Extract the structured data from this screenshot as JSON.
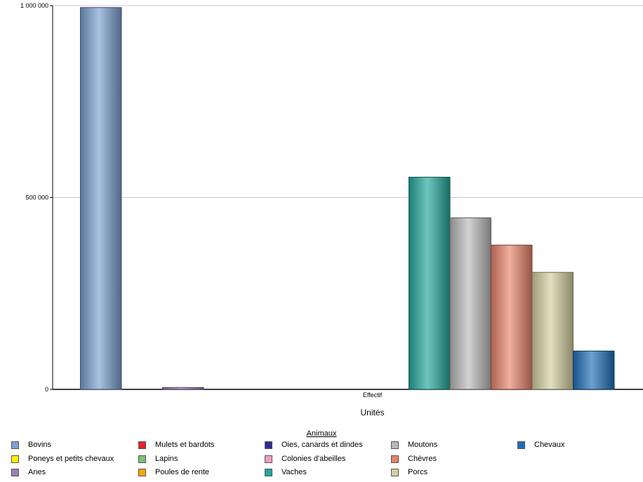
{
  "chart_data": {
    "type": "bar",
    "xlabel": "Unités",
    "categories": [
      "Effectif"
    ],
    "yticks": [
      "0",
      "500 000",
      "1 000 000"
    ],
    "ylim": [
      0,
      1000000
    ],
    "grid": true,
    "legend_title": "Animaux",
    "legend_placement": "bottom",
    "series": [
      {
        "name": "Bovins",
        "value": 995000,
        "color": "#7b9fd0"
      },
      {
        "name": "Poneys et petits chevaux",
        "value": 0,
        "color": "#ffee00"
      },
      {
        "name": "Anes",
        "value": 5000,
        "color": "#9b7fb8"
      },
      {
        "name": "Mulets et bardots",
        "value": 0,
        "color": "#e8202a"
      },
      {
        "name": "Lapins",
        "value": 0,
        "color": "#79c27a"
      },
      {
        "name": "Poules de rente",
        "value": 0,
        "color": "#f5a800"
      },
      {
        "name": "Oies, canards et dindes",
        "value": 0,
        "color": "#2b2f8f"
      },
      {
        "name": "Colonies d'abeilles",
        "value": 0,
        "color": "#f59cc8"
      },
      {
        "name": "Vaches",
        "value": 553000,
        "color": "#23a89c"
      },
      {
        "name": "Moutons",
        "value": 447000,
        "color": "#b9b9b9"
      },
      {
        "name": "Chèvres",
        "value": 376000,
        "color": "#e8826a"
      },
      {
        "name": "Porcs",
        "value": 305000,
        "color": "#d4d0a0"
      },
      {
        "name": "Chevaux",
        "value": 100000,
        "color": "#1f6fb8"
      }
    ]
  }
}
